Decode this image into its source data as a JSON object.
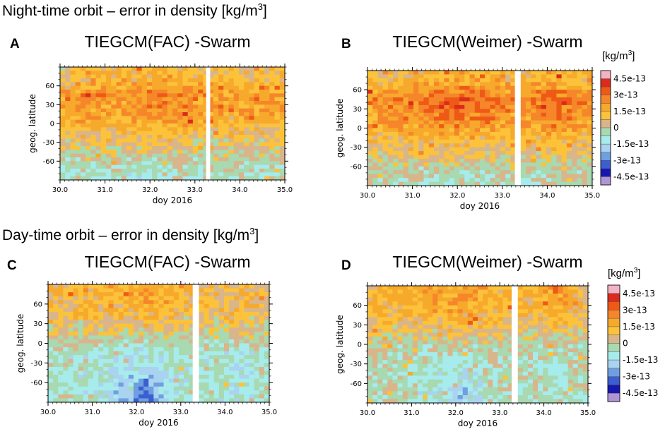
{
  "figure": {
    "night_heading": "Night-time orbit – error in density [kg/m",
    "day_heading": "Day-time orbit – error in density [kg/m",
    "heading_superscript": "3",
    "heading_close": "]"
  },
  "colorbar": {
    "title": "[kg/m",
    "title_superscript": "3",
    "title_close": "]",
    "labels": [
      "4.5e-13",
      "3e-13",
      "1.5e-13",
      "0",
      "-1.5e-13",
      "-3e-13",
      "-4.5e-13"
    ],
    "colors": [
      "#f2b3c4",
      "#dc2a1c",
      "#ee5a16",
      "#f6862a",
      "#f7a92c",
      "#fcc33a",
      "#d9b58b",
      "#a8d9b0",
      "#a7ecec",
      "#a9d3f0",
      "#6f9fe0",
      "#3b5fd0",
      "#1717b0",
      "#b095d6"
    ]
  },
  "chart_data": [
    {
      "panel": "A",
      "type": "heatmap",
      "title": "TIEGCM(FAC) -Swarm",
      "xlabel": "doy 2016",
      "ylabel": "geog. latitude",
      "xlim": [
        30.0,
        35.0
      ],
      "ylim": [
        -90,
        90
      ],
      "xticks": [
        "30.0",
        "31.0",
        "32.0",
        "33.0",
        "34.0",
        "35.0"
      ],
      "yticks": [
        "60",
        "30",
        "0",
        "-30",
        "-60"
      ],
      "x_centers": [
        30.25,
        30.75,
        31.25,
        31.75,
        32.25,
        32.75,
        33.25,
        33.75,
        34.25,
        34.75
      ],
      "lat_centers": [
        75,
        45,
        15,
        -15,
        -45,
        -75
      ],
      "values_e13": [
        [
          0.6,
          0.9,
          1.0,
          1.1,
          1.2,
          1.0,
          0.8,
          0.9,
          0.9,
          0.8
        ],
        [
          1.6,
          2.0,
          1.8,
          1.9,
          2.2,
          2.1,
          1.7,
          1.6,
          1.9,
          1.6
        ],
        [
          1.5,
          1.7,
          1.6,
          1.8,
          1.7,
          1.9,
          1.4,
          1.3,
          1.5,
          1.4
        ],
        [
          0.7,
          0.9,
          0.8,
          1.0,
          0.9,
          1.0,
          0.6,
          0.7,
          0.8,
          0.6
        ],
        [
          0.1,
          0.2,
          0.2,
          0.3,
          0.3,
          0.2,
          0.1,
          0.2,
          0.2,
          0.1
        ],
        [
          -0.4,
          -0.5,
          -0.5,
          -0.6,
          -0.4,
          -0.4,
          -0.3,
          -0.4,
          -0.3,
          -0.4
        ]
      ],
      "gap_doy": [
        33.25,
        33.34
      ]
    },
    {
      "panel": "B",
      "type": "heatmap",
      "title": "TIEGCM(Weimer) -Swarm",
      "xlabel": "doy 2016",
      "ylabel": "geog. latitude",
      "xlim": [
        30.0,
        35.0
      ],
      "ylim": [
        -90,
        90
      ],
      "xticks": [
        "30.0",
        "31.0",
        "32.0",
        "33.0",
        "34.0",
        "35.0"
      ],
      "yticks": [
        "60",
        "30",
        "0",
        "-30",
        "-60"
      ],
      "x_centers": [
        30.25,
        30.75,
        31.25,
        31.75,
        32.25,
        32.75,
        33.25,
        33.75,
        34.25,
        34.75
      ],
      "lat_centers": [
        75,
        45,
        15,
        -15,
        -45,
        -75
      ],
      "values_e13": [
        [
          0.9,
          1.0,
          1.2,
          1.4,
          1.5,
          1.3,
          1.0,
          1.1,
          1.2,
          1.0
        ],
        [
          1.8,
          2.0,
          2.2,
          2.7,
          2.8,
          2.5,
          2.0,
          2.1,
          2.6,
          2.0
        ],
        [
          1.6,
          1.8,
          2.0,
          2.3,
          2.2,
          2.1,
          1.7,
          1.9,
          2.3,
          1.7
        ],
        [
          0.9,
          1.0,
          1.1,
          1.3,
          1.2,
          1.1,
          0.9,
          1.0,
          1.4,
          0.9
        ],
        [
          0.3,
          0.4,
          0.4,
          0.5,
          0.5,
          0.4,
          0.3,
          0.4,
          0.5,
          0.3
        ],
        [
          -0.2,
          -0.3,
          -0.3,
          -0.4,
          -0.3,
          -0.3,
          -0.2,
          -0.3,
          -0.2,
          -0.2
        ]
      ],
      "gap_doy": [
        33.28,
        33.36
      ]
    },
    {
      "panel": "C",
      "type": "heatmap",
      "title": "TIEGCM(FAC) -Swarm",
      "xlabel": "doy 2016",
      "ylabel": "geog. latitude",
      "xlim": [
        30.0,
        35.0
      ],
      "ylim": [
        -90,
        90
      ],
      "xticks": [
        "30.0",
        "31.0",
        "32.0",
        "33.0",
        "34.0",
        "35.0"
      ],
      "yticks": [
        "60",
        "30",
        "0",
        "-30",
        "-60"
      ],
      "x_centers": [
        30.25,
        30.75,
        31.25,
        31.75,
        32.25,
        32.75,
        33.25,
        33.75,
        34.25,
        34.75
      ],
      "lat_centers": [
        75,
        45,
        15,
        -15,
        -45,
        -75
      ],
      "values_e13": [
        [
          1.1,
          1.0,
          1.2,
          1.3,
          1.4,
          1.1,
          0.9,
          0.8,
          0.9,
          0.8
        ],
        [
          0.8,
          0.7,
          0.9,
          1.0,
          1.1,
          0.9,
          0.7,
          0.6,
          0.7,
          0.6
        ],
        [
          0.3,
          0.2,
          0.3,
          0.2,
          0.3,
          0.2,
          0.1,
          0.2,
          0.2,
          0.2
        ],
        [
          -0.4,
          -0.5,
          -0.6,
          -0.8,
          -0.9,
          -0.6,
          -0.5,
          -0.4,
          -0.9,
          -0.5
        ],
        [
          -0.6,
          -0.7,
          -0.8,
          -1.2,
          -1.4,
          -0.9,
          -0.6,
          -0.5,
          -1.1,
          -0.6
        ],
        [
          -0.5,
          -0.6,
          -0.9,
          -1.6,
          -2.6,
          -1.0,
          -0.6,
          -0.5,
          -0.9,
          -0.5
        ]
      ],
      "gap_doy": [
        33.27,
        33.38
      ]
    },
    {
      "panel": "D",
      "type": "heatmap",
      "title": "TIEGCM(Weimer) -Swarm",
      "xlabel": "doy 2016",
      "ylabel": "geog. latitude",
      "xlim": [
        30.0,
        35.0
      ],
      "ylim": [
        -90,
        90
      ],
      "xticks": [
        "30.0",
        "31.0",
        "32.0",
        "33.0",
        "34.0",
        "35.0"
      ],
      "yticks": [
        "60",
        "30",
        "0",
        "-30",
        "-60"
      ],
      "x_centers": [
        30.25,
        30.75,
        31.25,
        31.75,
        32.25,
        32.75,
        33.25,
        33.75,
        34.25,
        34.75
      ],
      "lat_centers": [
        75,
        45,
        15,
        -15,
        -45,
        -75
      ],
      "values_e13": [
        [
          1.2,
          1.3,
          1.4,
          1.6,
          1.8,
          1.4,
          1.0,
          1.1,
          2.0,
          1.0
        ],
        [
          0.9,
          1.0,
          1.1,
          1.3,
          1.4,
          1.1,
          0.8,
          0.9,
          1.3,
          0.8
        ],
        [
          0.4,
          0.4,
          0.5,
          0.5,
          0.6,
          0.4,
          0.3,
          0.3,
          0.5,
          0.3
        ],
        [
          -0.2,
          -0.3,
          -0.4,
          -0.5,
          -0.5,
          -0.3,
          -0.2,
          -0.3,
          -0.4,
          -0.2
        ],
        [
          -0.4,
          -0.5,
          -0.6,
          -0.8,
          -0.9,
          -0.5,
          -0.4,
          -0.4,
          -0.6,
          -0.4
        ],
        [
          -0.3,
          -0.4,
          -0.6,
          -0.9,
          -1.8,
          -0.5,
          -0.3,
          -0.3,
          -0.6,
          -0.3
        ]
      ],
      "gap_doy": [
        33.27,
        33.36
      ]
    }
  ]
}
